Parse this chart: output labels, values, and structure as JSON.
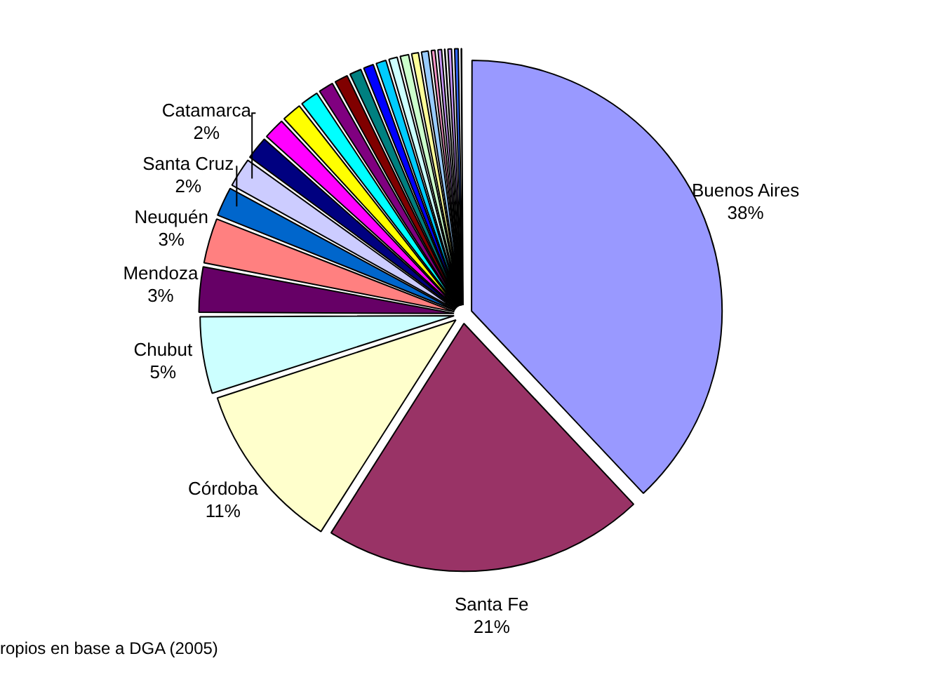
{
  "chart_data": {
    "type": "pie",
    "categories": [
      "Buenos Aires",
      "Santa Fe",
      "Córdoba",
      "Chubut",
      "Mendoza",
      "Neuquén",
      "Santa Cruz",
      "Catamarca",
      null,
      null,
      null,
      null,
      null,
      null,
      null,
      null,
      null,
      null,
      null,
      null,
      null,
      null,
      null,
      null,
      null,
      null,
      null
    ],
    "values": [
      38,
      21,
      11,
      5,
      3,
      3,
      2,
      2,
      1.6,
      1.5,
      1.4,
      1.3,
      1.1,
      1.0,
      0.9,
      0.8,
      0.8,
      0.7,
      0.7,
      0.6,
      0.6,
      0.4,
      0.4,
      0.2,
      0.4,
      0.4,
      0.2
    ],
    "value_labels": [
      "38%",
      "21%",
      "11%",
      "5%",
      "3%",
      "3%",
      "2%",
      "2%",
      null,
      null,
      null,
      null,
      null,
      null,
      null,
      null,
      null,
      null,
      null,
      null,
      null,
      null,
      null,
      null,
      null,
      null,
      null
    ],
    "colors": [
      "#9999ff",
      "#993366",
      "#ffffcc",
      "#ccffff",
      "#660066",
      "#ff8080",
      "#0066cc",
      "#ccccff",
      "#000080",
      "#ff00ff",
      "#ffff00",
      "#00ffff",
      "#800080",
      "#800000",
      "#008080",
      "#0000ff",
      "#00ccff",
      "#ccffff",
      "#ccffcc",
      "#ffff99",
      "#99ccff",
      "#ff99cc",
      "#cc99ff",
      "#ffcc99",
      "#cc99ff",
      "#3366ff",
      "#33cccc"
    ],
    "annotations": [
      "ropios en base a DGA (2005)"
    ],
    "legend": false
  }
}
